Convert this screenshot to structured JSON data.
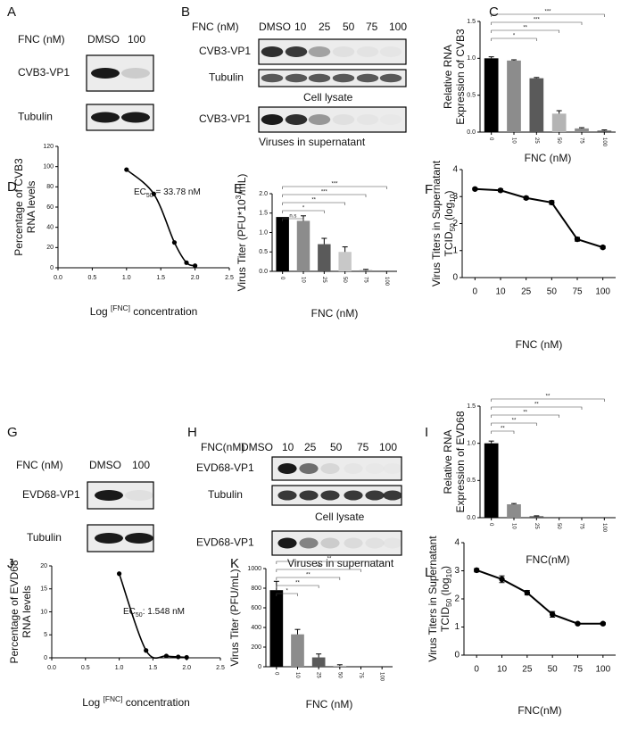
{
  "blots": [
    {
      "panel": "A",
      "condition_label": "FNC (nM)",
      "lanes": [
        "DMSO",
        "100"
      ],
      "rows": [
        "CVB3-VP1",
        "Tubulin"
      ]
    },
    {
      "panel": "B",
      "condition_label": "FNC (nM)",
      "lanes": [
        "DMSO",
        "10",
        "25",
        "50",
        "75",
        "100"
      ],
      "rows": [
        "CVB3-VP1",
        "Tubulin",
        "CVB3-VP1"
      ],
      "captions": [
        "Cell lysate",
        "Viruses in supernatant"
      ]
    },
    {
      "panel": "G",
      "condition_label": "FNC (nM)",
      "lanes": [
        "DMSO",
        "100"
      ],
      "rows": [
        "EVD68-VP1",
        "Tubulin"
      ]
    },
    {
      "panel": "H",
      "condition_label": "FNC(nM)",
      "lanes": [
        "DMSO",
        "10",
        "25",
        "50",
        "75",
        "100"
      ],
      "rows": [
        "EVD68-VP1",
        "Tubulin",
        "EVD68-VP1"
      ],
      "captions": [
        "Cell lysate",
        "Viruses in supernatant"
      ]
    }
  ],
  "chart_data": [
    {
      "panel": "C",
      "type": "bar",
      "ylabel": [
        "Relative RNA",
        "Expression of CVB3"
      ],
      "xlabel": "FNC (nM)",
      "categories": [
        "0",
        "10",
        "25",
        "50",
        "75",
        "100"
      ],
      "values": [
        1.0,
        0.97,
        0.73,
        0.25,
        0.05,
        0.02
      ],
      "errors": [
        0.02,
        0.01,
        0.01,
        0.04,
        0.01,
        0.01
      ],
      "colors": [
        "#000000",
        "#8c8c8c",
        "#5a5a5a",
        "#b4b4b4",
        "#8c8c8c",
        "#5a5a5a"
      ],
      "ylim": [
        0,
        1.5
      ],
      "yticks": [
        {
          "value": 0,
          "label": "0.0"
        },
        0.5,
        {
          "value": 1,
          "label": "1.0"
        },
        1.5
      ],
      "significance": [
        "*",
        "**",
        "***",
        "***"
      ]
    },
    {
      "panel": "D",
      "type": "line",
      "smooth": true,
      "annotation": [
        "EC",
        {
          "text": "50",
          "script": "sub"
        },
        " = 33.78 nM"
      ],
      "ylabel": [
        "Percentage of CVB3",
        "RNA levels"
      ],
      "xlabel": [
        "Log ",
        {
          "text": "[FNC]",
          "script": "super"
        },
        " concentration"
      ],
      "x": [
        1.0,
        1.398,
        1.699,
        1.875,
        2.0
      ],
      "values": [
        97,
        73,
        25,
        5,
        2
      ],
      "color": "#000000",
      "xlim": [
        0,
        2.5
      ],
      "xticks": [
        {
          "value": 0,
          "label": "0.0"
        },
        0.5,
        {
          "value": 1,
          "label": "1.0"
        },
        1.5,
        {
          "value": 2,
          "label": "2.0"
        },
        2.5
      ],
      "ylim": [
        0,
        120
      ],
      "yticks": [
        0,
        20,
        40,
        60,
        80,
        100,
        120
      ]
    },
    {
      "panel": "E",
      "type": "bar",
      "ylabel": [
        [
          "Virus Titer (PFU*10",
          {
            "text": "3",
            "script": "super"
          },
          "/mL)"
        ]
      ],
      "xlabel": "FNC (nM)",
      "categories": [
        "0",
        "10",
        "25",
        "50",
        "75",
        "100"
      ],
      "values": [
        1.4,
        1.3,
        0.7,
        0.5,
        0.03,
        0
      ],
      "errors": [
        0,
        0.13,
        0.15,
        0.13,
        0.02,
        0
      ],
      "colors": [
        "#000000",
        "#8c8c8c",
        "#5a5a5a",
        "#c8c8c8",
        "#8c8c8c",
        "#5a5a5a"
      ],
      "ylim": [
        0,
        2.0
      ],
      "yticks": [
        {
          "value": 0,
          "label": "0.0"
        },
        0.5,
        {
          "value": 1,
          "label": "1.0"
        },
        1.5,
        {
          "value": 2,
          "label": "2.0"
        }
      ],
      "significance": [
        "n.s",
        "*",
        "**",
        "***",
        "***"
      ]
    },
    {
      "panel": "F",
      "type": "line",
      "ylabel": [
        "Virus Titers in Supernatant",
        [
          "TCID",
          {
            "text": "50",
            "script": "sub"
          },
          " (log",
          {
            "text": "10",
            "script": "sub"
          },
          ")"
        ]
      ],
      "xlabel": "FNC (nM)",
      "categories": [
        "0",
        "10",
        "25",
        "50",
        "75",
        "100"
      ],
      "values": [
        3.28,
        3.23,
        2.95,
        2.78,
        1.42,
        1.12
      ],
      "errors": [
        0.04,
        0.05,
        0.05,
        0.07,
        0.07,
        0.05
      ],
      "color": "#000000",
      "ylim": [
        0,
        4
      ],
      "yticks": [
        0,
        1,
        2,
        3,
        4
      ]
    },
    {
      "panel": "I",
      "type": "bar",
      "ylabel": [
        "Relative RNA",
        "Expression of EVD68"
      ],
      "xlabel": "FNC(nM)",
      "categories": [
        "0",
        "10",
        "25",
        "50",
        "75",
        "100"
      ],
      "values": [
        1.0,
        0.18,
        0.02,
        0,
        0,
        0
      ],
      "errors": [
        0.03,
        0.01,
        0.005,
        0,
        0,
        0
      ],
      "colors": [
        "#000000",
        "#8c8c8c",
        "#5a5a5a",
        "#b4b4b4",
        "#8c8c8c",
        "#5a5a5a"
      ],
      "ylim": [
        0,
        1.5
      ],
      "yticks": [
        {
          "value": 0,
          "label": "0.0"
        },
        0.5,
        {
          "value": 1,
          "label": "1.0"
        },
        1.5
      ],
      "significance": [
        "**",
        "**",
        "**",
        "**",
        "**"
      ]
    },
    {
      "panel": "J",
      "type": "line",
      "smooth": true,
      "annotation": [
        "EC",
        {
          "text": "50",
          "script": "sub"
        },
        ": 1.548 nM"
      ],
      "ylabel": [
        "Percentage of EVD68",
        "RNA levels"
      ],
      "xlabel": [
        "Log ",
        {
          "text": "[FNC]",
          "script": "super"
        },
        " concentration"
      ],
      "x": [
        1.0,
        1.398,
        1.699,
        1.875,
        2.0
      ],
      "values": [
        18.3,
        1.6,
        0.4,
        0.2,
        0.1
      ],
      "color": "#000000",
      "xlim": [
        0,
        2.5
      ],
      "xticks": [
        {
          "value": 0,
          "label": "0.0"
        },
        0.5,
        {
          "value": 1,
          "label": "1.0"
        },
        1.5,
        {
          "value": 2,
          "label": "2.0"
        },
        2.5
      ],
      "ylim": [
        0,
        20
      ],
      "yticks": [
        0,
        5,
        10,
        15,
        20
      ]
    },
    {
      "panel": "K",
      "type": "bar",
      "ylabel": [
        "Virus Titer (PFU/mL)"
      ],
      "xlabel": "FNC (nM)",
      "categories": [
        "0",
        "10",
        "25",
        "50",
        "75",
        "100"
      ],
      "values": [
        780,
        330,
        95,
        10,
        0,
        0
      ],
      "errors": [
        90,
        50,
        35,
        10,
        0,
        0
      ],
      "colors": [
        "#000000",
        "#8c8c8c",
        "#5a5a5a",
        "#b4b4b4",
        "#8c8c8c",
        "#5a5a5a"
      ],
      "ylim": [
        0,
        1000
      ],
      "yticks": [
        0,
        200,
        400,
        600,
        800,
        1000
      ],
      "significance": [
        "*",
        "**",
        "**",
        "**",
        "**"
      ]
    },
    {
      "panel": "L",
      "type": "line",
      "ylabel": [
        "Virus Titers in Supernatant",
        [
          "TCID",
          {
            "text": "50",
            "script": "sub"
          },
          " (log",
          {
            "text": "10",
            "script": "sub"
          },
          ")"
        ]
      ],
      "xlabel": "FNC(nM)",
      "categories": [
        "0",
        "10",
        "25",
        "50",
        "75",
        "100"
      ],
      "values": [
        3.02,
        2.7,
        2.22,
        1.45,
        1.12,
        1.12
      ],
      "errors": [
        0.06,
        0.12,
        0.08,
        0.1,
        0.03,
        0.04
      ],
      "color": "#000000",
      "ylim": [
        0,
        4
      ],
      "yticks": [
        0,
        1,
        2,
        3,
        4
      ]
    }
  ]
}
